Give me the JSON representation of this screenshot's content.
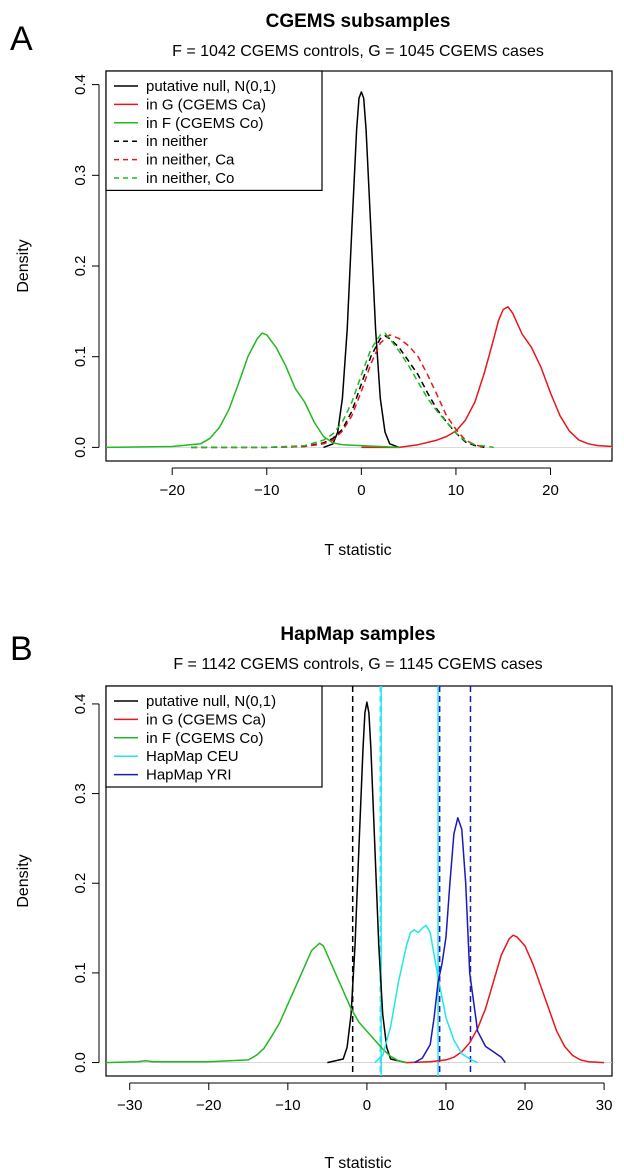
{
  "chart_data": [
    {
      "type": "line",
      "panel_letter": "A",
      "title": "CGEMS subsamples",
      "subtitle": "F = 1042 CGEMS controls, G = 1045 CGEMS cases",
      "xlabel": "T statistic",
      "ylabel": "Density",
      "xlim": [
        -27,
        26.5
      ],
      "ylim": [
        -0.015,
        0.415
      ],
      "xticks": [
        -20,
        -10,
        0,
        10,
        20
      ],
      "yticks": [
        0.0,
        0.1,
        0.2,
        0.3,
        0.4
      ],
      "xtick_labels": [
        "−20",
        "−10",
        "0",
        "10",
        "20"
      ],
      "ytick_labels": [
        "0.0",
        "0.1",
        "0.2",
        "0.3",
        "0.4"
      ],
      "grid": false,
      "legend_position": "top-left",
      "series": [
        {
          "name": "putative null, N(0,1)",
          "color": "#000000",
          "dash": "solid",
          "x": [
            -4,
            -3,
            -2.5,
            -2,
            -1.5,
            -1,
            -0.5,
            -0.25,
            0,
            0.25,
            0.5,
            1,
            1.5,
            2,
            2.5,
            3,
            4
          ],
          "y": [
            0.0,
            0.004,
            0.017,
            0.054,
            0.13,
            0.242,
            0.35,
            0.385,
            0.392,
            0.385,
            0.35,
            0.242,
            0.13,
            0.054,
            0.017,
            0.004,
            0.0
          ]
        },
        {
          "name": "in G (CGEMS Ca)",
          "color": "#e8161a",
          "dash": "solid",
          "x": [
            0,
            4,
            6,
            8,
            9,
            10,
            11,
            12,
            13,
            14,
            14.5,
            15,
            15.5,
            16,
            17,
            18,
            19,
            20,
            21,
            22,
            23,
            24,
            25,
            26.5
          ],
          "y": [
            0.0,
            0.0,
            0.003,
            0.008,
            0.012,
            0.018,
            0.03,
            0.05,
            0.082,
            0.12,
            0.14,
            0.152,
            0.155,
            0.148,
            0.125,
            0.11,
            0.088,
            0.06,
            0.035,
            0.018,
            0.008,
            0.004,
            0.002,
            0.001
          ]
        },
        {
          "name": "in F (CGEMS Co)",
          "color": "#22b822",
          "dash": "solid",
          "x": [
            -27,
            -20,
            -17,
            -16,
            -15,
            -14,
            -13,
            -12,
            -11,
            -10.5,
            -10,
            -9,
            -8,
            -7,
            -6,
            -5,
            -4,
            -3,
            -2,
            0,
            2,
            4
          ],
          "y": [
            0.0,
            0.001,
            0.004,
            0.01,
            0.022,
            0.042,
            0.07,
            0.1,
            0.12,
            0.126,
            0.124,
            0.11,
            0.09,
            0.065,
            0.05,
            0.028,
            0.012,
            0.005,
            0.003,
            0.002,
            0.001,
            0.0
          ]
        },
        {
          "name": "in neither",
          "color": "#000000",
          "dash": "dashed",
          "x": [
            -18,
            -10,
            -6,
            -4,
            -3,
            -2,
            -1,
            0,
            1,
            2,
            2.5,
            3,
            4,
            5,
            6,
            7,
            8,
            9,
            10,
            11,
            12,
            13
          ],
          "y": [
            0.0,
            0.0,
            0.001,
            0.005,
            0.01,
            0.02,
            0.04,
            0.07,
            0.1,
            0.12,
            0.123,
            0.12,
            0.11,
            0.095,
            0.08,
            0.06,
            0.042,
            0.028,
            0.016,
            0.006,
            0.002,
            0.0
          ]
        },
        {
          "name": "in neither, Ca",
          "color": "#e8161a",
          "dash": "dashed",
          "x": [
            -18,
            -10,
            -6,
            -4,
            -3,
            -2,
            -1,
            0,
            1,
            2,
            3,
            4,
            5,
            6,
            7,
            8,
            9,
            10,
            11,
            12,
            13
          ],
          "y": [
            0.0,
            0.0,
            0.001,
            0.004,
            0.008,
            0.018,
            0.035,
            0.062,
            0.092,
            0.115,
            0.124,
            0.12,
            0.112,
            0.1,
            0.08,
            0.058,
            0.035,
            0.02,
            0.008,
            0.003,
            0.0
          ]
        },
        {
          "name": "in neither, Co",
          "color": "#22b822",
          "dash": "dashed",
          "x": [
            -18,
            -10,
            -6,
            -4,
            -3,
            -2,
            -1,
            0,
            1,
            2,
            2.5,
            3,
            4,
            5,
            6,
            7,
            8,
            9,
            10,
            11,
            12,
            14
          ],
          "y": [
            0.0,
            0.0,
            0.002,
            0.008,
            0.015,
            0.028,
            0.05,
            0.08,
            0.108,
            0.124,
            0.126,
            0.12,
            0.106,
            0.09,
            0.072,
            0.054,
            0.04,
            0.028,
            0.016,
            0.007,
            0.003,
            0.0
          ]
        }
      ],
      "vlines": []
    },
    {
      "type": "line",
      "panel_letter": "B",
      "title": "HapMap samples",
      "subtitle": "F = 1142 CGEMS controls, G = 1145 CGEMS cases",
      "xlabel": "T statistic",
      "ylabel": "Density",
      "xlim": [
        -33,
        31
      ],
      "ylim": [
        -0.015,
        0.42
      ],
      "xticks": [
        -30,
        -20,
        -10,
        0,
        10,
        20,
        30
      ],
      "yticks": [
        0.0,
        0.1,
        0.2,
        0.3,
        0.4
      ],
      "xtick_labels": [
        "−30",
        "−20",
        "−10",
        "0",
        "10",
        "20",
        "30"
      ],
      "ytick_labels": [
        "0.0",
        "0.1",
        "0.2",
        "0.3",
        "0.4"
      ],
      "grid": false,
      "legend_position": "top-left",
      "series": [
        {
          "name": "putative null, N(0,1)",
          "color": "#000000",
          "dash": "solid",
          "x": [
            -5,
            -3,
            -2.5,
            -2,
            -1.5,
            -1,
            -0.5,
            -0.25,
            0,
            0.25,
            0.5,
            1,
            1.5,
            2,
            2.5,
            3,
            5
          ],
          "y": [
            0.0,
            0.004,
            0.017,
            0.054,
            0.13,
            0.242,
            0.35,
            0.39,
            0.402,
            0.39,
            0.35,
            0.242,
            0.13,
            0.054,
            0.017,
            0.004,
            0.0
          ]
        },
        {
          "name": "in G (CGEMS Ca)",
          "color": "#e8161a",
          "dash": "solid",
          "x": [
            5,
            8,
            10,
            11,
            12,
            13,
            14,
            15,
            16,
            17,
            18,
            18.5,
            19,
            20,
            21,
            22,
            23,
            24,
            25,
            26,
            27,
            28,
            30
          ],
          "y": [
            0.0,
            0.001,
            0.003,
            0.006,
            0.012,
            0.022,
            0.038,
            0.06,
            0.09,
            0.12,
            0.138,
            0.142,
            0.14,
            0.13,
            0.11,
            0.085,
            0.06,
            0.035,
            0.018,
            0.008,
            0.003,
            0.001,
            0.0
          ]
        },
        {
          "name": "in F (CGEMS Co)",
          "color": "#22b822",
          "dash": "solid",
          "x": [
            -33,
            -29,
            -28,
            -27,
            -20,
            -15,
            -14,
            -13,
            -12,
            -11,
            -10,
            -9,
            -8,
            -7,
            -6,
            -5.5,
            -5,
            -4,
            -3,
            -2,
            -1,
            0,
            1,
            2,
            3,
            4,
            5
          ],
          "y": [
            0.0,
            0.001,
            0.002,
            0.001,
            0.001,
            0.003,
            0.008,
            0.016,
            0.03,
            0.045,
            0.065,
            0.085,
            0.105,
            0.125,
            0.133,
            0.13,
            0.12,
            0.1,
            0.08,
            0.06,
            0.045,
            0.035,
            0.025,
            0.015,
            0.007,
            0.002,
            0.0
          ]
        },
        {
          "name": "HapMap CEU",
          "color": "#22e6e6",
          "dash": "solid",
          "x": [
            1,
            2,
            3,
            4,
            5,
            5.5,
            6,
            6.5,
            7,
            7.5,
            8,
            8.5,
            9,
            10,
            11,
            12,
            13,
            14
          ],
          "y": [
            0.0,
            0.008,
            0.04,
            0.09,
            0.13,
            0.145,
            0.148,
            0.145,
            0.15,
            0.153,
            0.145,
            0.12,
            0.095,
            0.05,
            0.025,
            0.01,
            0.004,
            0.0
          ]
        },
        {
          "name": "HapMap YRI",
          "color": "#1a1ab8",
          "dash": "solid",
          "x": [
            6,
            7,
            8,
            8.5,
            9,
            9.5,
            10,
            10.5,
            11,
            11.5,
            12,
            12.5,
            13,
            14,
            15,
            16,
            17,
            17.5
          ],
          "y": [
            0.0,
            0.005,
            0.02,
            0.05,
            0.09,
            0.11,
            0.14,
            0.2,
            0.255,
            0.273,
            0.26,
            0.2,
            0.1,
            0.035,
            0.018,
            0.012,
            0.006,
            0.0
          ]
        }
      ],
      "vlines": [
        {
          "x": -1.8,
          "color": "#000000",
          "dash": "dashed"
        },
        {
          "x": 1.7,
          "color": "#22e6e6",
          "dash": "dashed"
        },
        {
          "x": 1.8,
          "color": "#22e6e6",
          "dash": "solid"
        },
        {
          "x": 9.0,
          "color": "#22e6e6",
          "dash": "solid"
        },
        {
          "x": 9.2,
          "color": "#1a1ab8",
          "dash": "dashed"
        },
        {
          "x": 13.1,
          "color": "#1a1ab8",
          "dash": "dashed"
        }
      ]
    }
  ]
}
